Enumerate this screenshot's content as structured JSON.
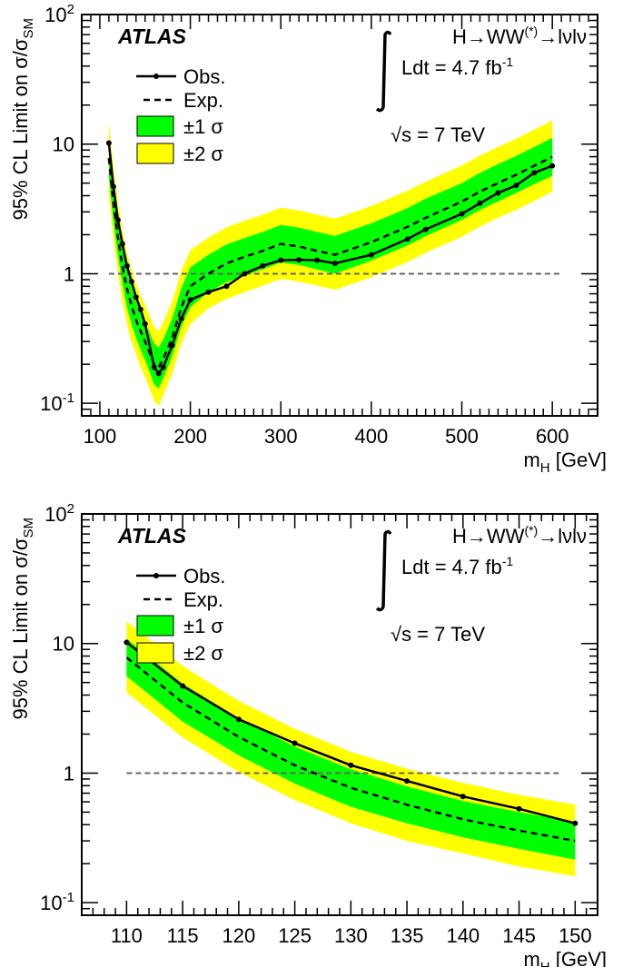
{
  "colors": {
    "band_1sigma": "#00ff00",
    "band_2sigma": "#ffff00",
    "observed": "#000000",
    "expected": "#000000",
    "reference_line": "#666666"
  },
  "chart_data": [
    {
      "type": "line",
      "label": "ATLAS",
      "process": {
        "base": "H→WW",
        "sup": "(*)",
        "tail": "→lνlν"
      },
      "lumi": {
        "text": "Ldt = 4.7 fb",
        "sup": "-1"
      },
      "energy": "√s = 7 TeV",
      "xlabel": {
        "main": "m",
        "sub": "H",
        "unit": " [GeV]"
      },
      "ylabel": {
        "main": "95% CL Limit on σ/σ",
        "sub": "SM"
      },
      "xlim": [
        80,
        650
      ],
      "ylim": [
        0.08,
        100
      ],
      "yscale": "log",
      "xticks": [
        100,
        200,
        300,
        400,
        500,
        600
      ],
      "yticks": [
        {
          "value": 0.1,
          "base": "10",
          "exp": "-1"
        },
        {
          "value": 1,
          "base": "1",
          "exp": ""
        },
        {
          "value": 10,
          "base": "10",
          "exp": ""
        },
        {
          "value": 100,
          "base": "10",
          "exp": "2"
        }
      ],
      "reference_line": 1,
      "legend": {
        "observed": "Obs.",
        "expected": "Exp.",
        "band1": "±1 σ",
        "band2": "±2 σ",
        "position": "top-left"
      },
      "observed": {
        "x": [
          110,
          115,
          120,
          125,
          130,
          135,
          140,
          145,
          150,
          160,
          165,
          170,
          180,
          190,
          200,
          220,
          240,
          260,
          280,
          300,
          320,
          340,
          360,
          400,
          440,
          460,
          500,
          520,
          540,
          560,
          580,
          600
        ],
        "y": [
          10.2,
          4.7,
          2.6,
          1.7,
          1.15,
          0.87,
          0.66,
          0.53,
          0.41,
          0.19,
          0.17,
          0.19,
          0.28,
          0.45,
          0.63,
          0.72,
          0.8,
          1.0,
          1.15,
          1.27,
          1.28,
          1.27,
          1.2,
          1.4,
          1.85,
          2.2,
          2.9,
          3.5,
          4.2,
          4.8,
          6.0,
          6.8
        ]
      },
      "expected": {
        "x": [
          110,
          115,
          120,
          125,
          130,
          135,
          140,
          145,
          150,
          160,
          165,
          170,
          180,
          190,
          200,
          220,
          240,
          260,
          280,
          300,
          320,
          340,
          360,
          400,
          440,
          460,
          500,
          520,
          540,
          560,
          580,
          600
        ],
        "y": [
          7.8,
          3.5,
          1.9,
          1.15,
          0.77,
          0.57,
          0.44,
          0.36,
          0.3,
          0.2,
          0.19,
          0.22,
          0.32,
          0.55,
          0.8,
          1.0,
          1.2,
          1.35,
          1.5,
          1.7,
          1.62,
          1.5,
          1.4,
          1.75,
          2.3,
          2.7,
          3.6,
          4.3,
          5.0,
          5.8,
          6.8,
          8.0
        ]
      },
      "band1": {
        "x": [
          110,
          115,
          120,
          125,
          130,
          135,
          140,
          145,
          150,
          160,
          165,
          170,
          180,
          190,
          200,
          220,
          240,
          260,
          280,
          300,
          320,
          340,
          360,
          400,
          440,
          460,
          500,
          520,
          540,
          560,
          580,
          600
        ],
        "lo": [
          5.6,
          2.5,
          1.37,
          0.83,
          0.55,
          0.41,
          0.32,
          0.26,
          0.215,
          0.14,
          0.13,
          0.155,
          0.23,
          0.39,
          0.55,
          0.72,
          0.86,
          0.97,
          1.08,
          1.22,
          1.17,
          1.08,
          1.0,
          1.26,
          1.65,
          1.95,
          2.6,
          3.1,
          3.6,
          4.2,
          4.9,
          5.7
        ],
        "hi": [
          10.9,
          4.9,
          2.65,
          1.6,
          1.07,
          0.79,
          0.61,
          0.5,
          0.42,
          0.29,
          0.27,
          0.31,
          0.45,
          0.77,
          1.12,
          1.4,
          1.68,
          1.89,
          2.1,
          2.38,
          2.27,
          2.1,
          1.96,
          2.45,
          3.2,
          3.8,
          5.0,
          6.0,
          7.0,
          8.1,
          9.5,
          11.2
        ]
      },
      "band2": {
        "x": [
          110,
          115,
          120,
          125,
          130,
          135,
          140,
          145,
          150,
          160,
          165,
          170,
          180,
          190,
          200,
          220,
          240,
          260,
          280,
          300,
          320,
          340,
          360,
          400,
          440,
          460,
          500,
          520,
          540,
          560,
          580,
          600
        ],
        "lo": [
          4.2,
          1.88,
          1.02,
          0.62,
          0.41,
          0.3,
          0.24,
          0.19,
          0.16,
          0.105,
          0.095,
          0.115,
          0.17,
          0.29,
          0.41,
          0.54,
          0.64,
          0.72,
          0.81,
          0.91,
          0.87,
          0.81,
          0.75,
          0.94,
          1.23,
          1.45,
          1.93,
          2.3,
          2.7,
          3.1,
          3.65,
          4.3
        ],
        "hi": [
          14.8,
          6.7,
          3.6,
          2.2,
          1.46,
          1.08,
          0.84,
          0.68,
          0.57,
          0.39,
          0.36,
          0.42,
          0.61,
          1.05,
          1.52,
          1.9,
          2.28,
          2.57,
          2.85,
          3.23,
          3.08,
          2.85,
          2.66,
          3.33,
          4.37,
          5.13,
          6.84,
          8.17,
          9.5,
          11.0,
          12.9,
          15.2
        ]
      }
    },
    {
      "type": "line",
      "label": "ATLAS",
      "process": {
        "base": "H→WW",
        "sup": "(*)",
        "tail": "→lνlν"
      },
      "lumi": {
        "text": "Ldt = 4.7 fb",
        "sup": "-1"
      },
      "energy": "√s = 7 TeV",
      "xlabel": {
        "main": "m",
        "sub": "H",
        "unit": " [GeV]"
      },
      "ylabel": {
        "main": "95% CL Limit on σ/σ",
        "sub": "SM"
      },
      "xlim": [
        106,
        152
      ],
      "ylim": [
        0.08,
        100
      ],
      "yscale": "log",
      "xticks": [
        110,
        115,
        120,
        125,
        130,
        135,
        140,
        145,
        150
      ],
      "yticks": [
        {
          "value": 0.1,
          "base": "10",
          "exp": "-1"
        },
        {
          "value": 1,
          "base": "1",
          "exp": ""
        },
        {
          "value": 10,
          "base": "10",
          "exp": ""
        },
        {
          "value": 100,
          "base": "10",
          "exp": "2"
        }
      ],
      "reference_line": 1,
      "legend": {
        "observed": "Obs.",
        "expected": "Exp.",
        "band1": "±1 σ",
        "band2": "±2 σ",
        "position": "top-left"
      },
      "observed": {
        "x": [
          110,
          115,
          120,
          125,
          130,
          135,
          140,
          145,
          150
        ],
        "y": [
          10.2,
          4.7,
          2.6,
          1.7,
          1.15,
          0.87,
          0.66,
          0.53,
          0.41
        ]
      },
      "expected": {
        "x": [
          110,
          115,
          120,
          125,
          130,
          135,
          140,
          145,
          150
        ],
        "y": [
          7.8,
          3.5,
          1.9,
          1.15,
          0.77,
          0.57,
          0.44,
          0.36,
          0.3
        ]
      },
      "band1": {
        "x": [
          110,
          115,
          120,
          125,
          130,
          135,
          140,
          145,
          150
        ],
        "lo": [
          5.6,
          2.5,
          1.37,
          0.83,
          0.55,
          0.41,
          0.32,
          0.26,
          0.215
        ],
        "hi": [
          10.9,
          4.9,
          2.65,
          1.6,
          1.07,
          0.79,
          0.61,
          0.5,
          0.42
        ]
      },
      "band2": {
        "x": [
          110,
          115,
          120,
          125,
          130,
          135,
          140,
          145,
          150
        ],
        "lo": [
          4.2,
          1.88,
          1.02,
          0.62,
          0.41,
          0.3,
          0.24,
          0.19,
          0.16
        ],
        "hi": [
          14.8,
          6.7,
          3.6,
          2.2,
          1.46,
          1.08,
          0.84,
          0.68,
          0.57
        ]
      }
    }
  ]
}
